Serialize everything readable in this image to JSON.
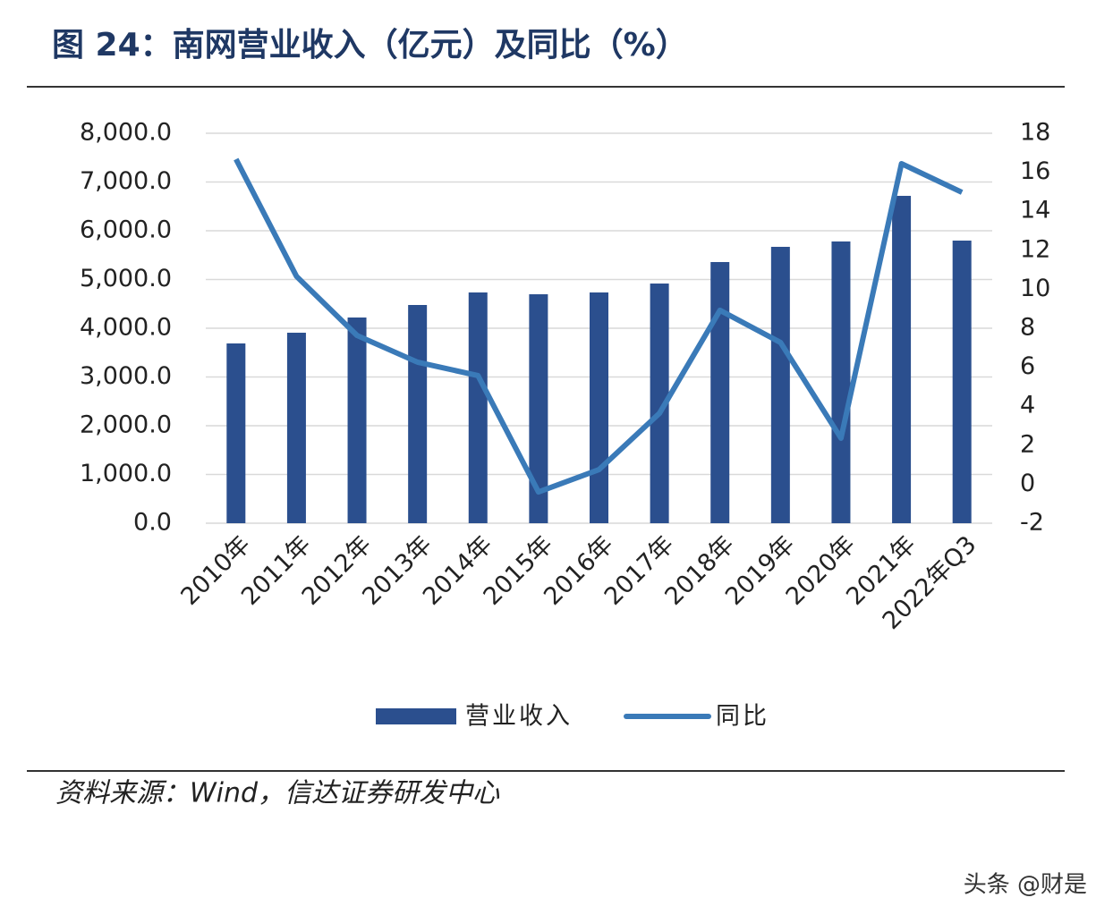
{
  "chart_data": {
    "type": "bar",
    "title": "图 24：南网营业收入（亿元）及同比（%）",
    "categories": [
      "2010年",
      "2011年",
      "2012年",
      "2013年",
      "2014年",
      "2015年",
      "2016年",
      "2017年",
      "2018年",
      "2019年",
      "2020年",
      "2021年",
      "2022年Q3"
    ],
    "series": [
      {
        "name": "营业收入",
        "type": "bar",
        "color": "#2b4f8e",
        "values": [
          3688,
          3908,
          4220,
          4477,
          4734,
          4697,
          4734,
          4917,
          5358,
          5670,
          5780,
          6716,
          5798
        ]
      },
      {
        "name": "同比",
        "type": "line",
        "axis": "y2",
        "color": "#3a7ab8",
        "values": [
          16.67,
          10.66,
          7.63,
          6.26,
          5.57,
          -0.4,
          0.75,
          3.64,
          8.92,
          7.27,
          2.36,
          16.44,
          14.97
        ]
      }
    ],
    "ylim": [
      0,
      8000
    ],
    "yticks": [
      {
        "value": 0,
        "label": "0.0"
      },
      {
        "value": 1000,
        "label": "1,000.0"
      },
      {
        "value": 2000,
        "label": "2,000.0"
      },
      {
        "value": 3000,
        "label": "3,000.0"
      },
      {
        "value": 4000,
        "label": "4,000.0"
      },
      {
        "value": 5000,
        "label": "5,000.0"
      },
      {
        "value": 6000,
        "label": "6,000.0"
      },
      {
        "value": 7000,
        "label": "7,000.0"
      },
      {
        "value": 8000,
        "label": "8,000.0"
      }
    ],
    "y2lim": [
      -2,
      18
    ],
    "y2ticks": [
      -2,
      0,
      2,
      4,
      6,
      8,
      10,
      12,
      14,
      16,
      18
    ],
    "grid": true,
    "legend": "bottom",
    "source": "资料来源：Wind，信达证券研发中心",
    "watermark": "头条 @财是"
  }
}
